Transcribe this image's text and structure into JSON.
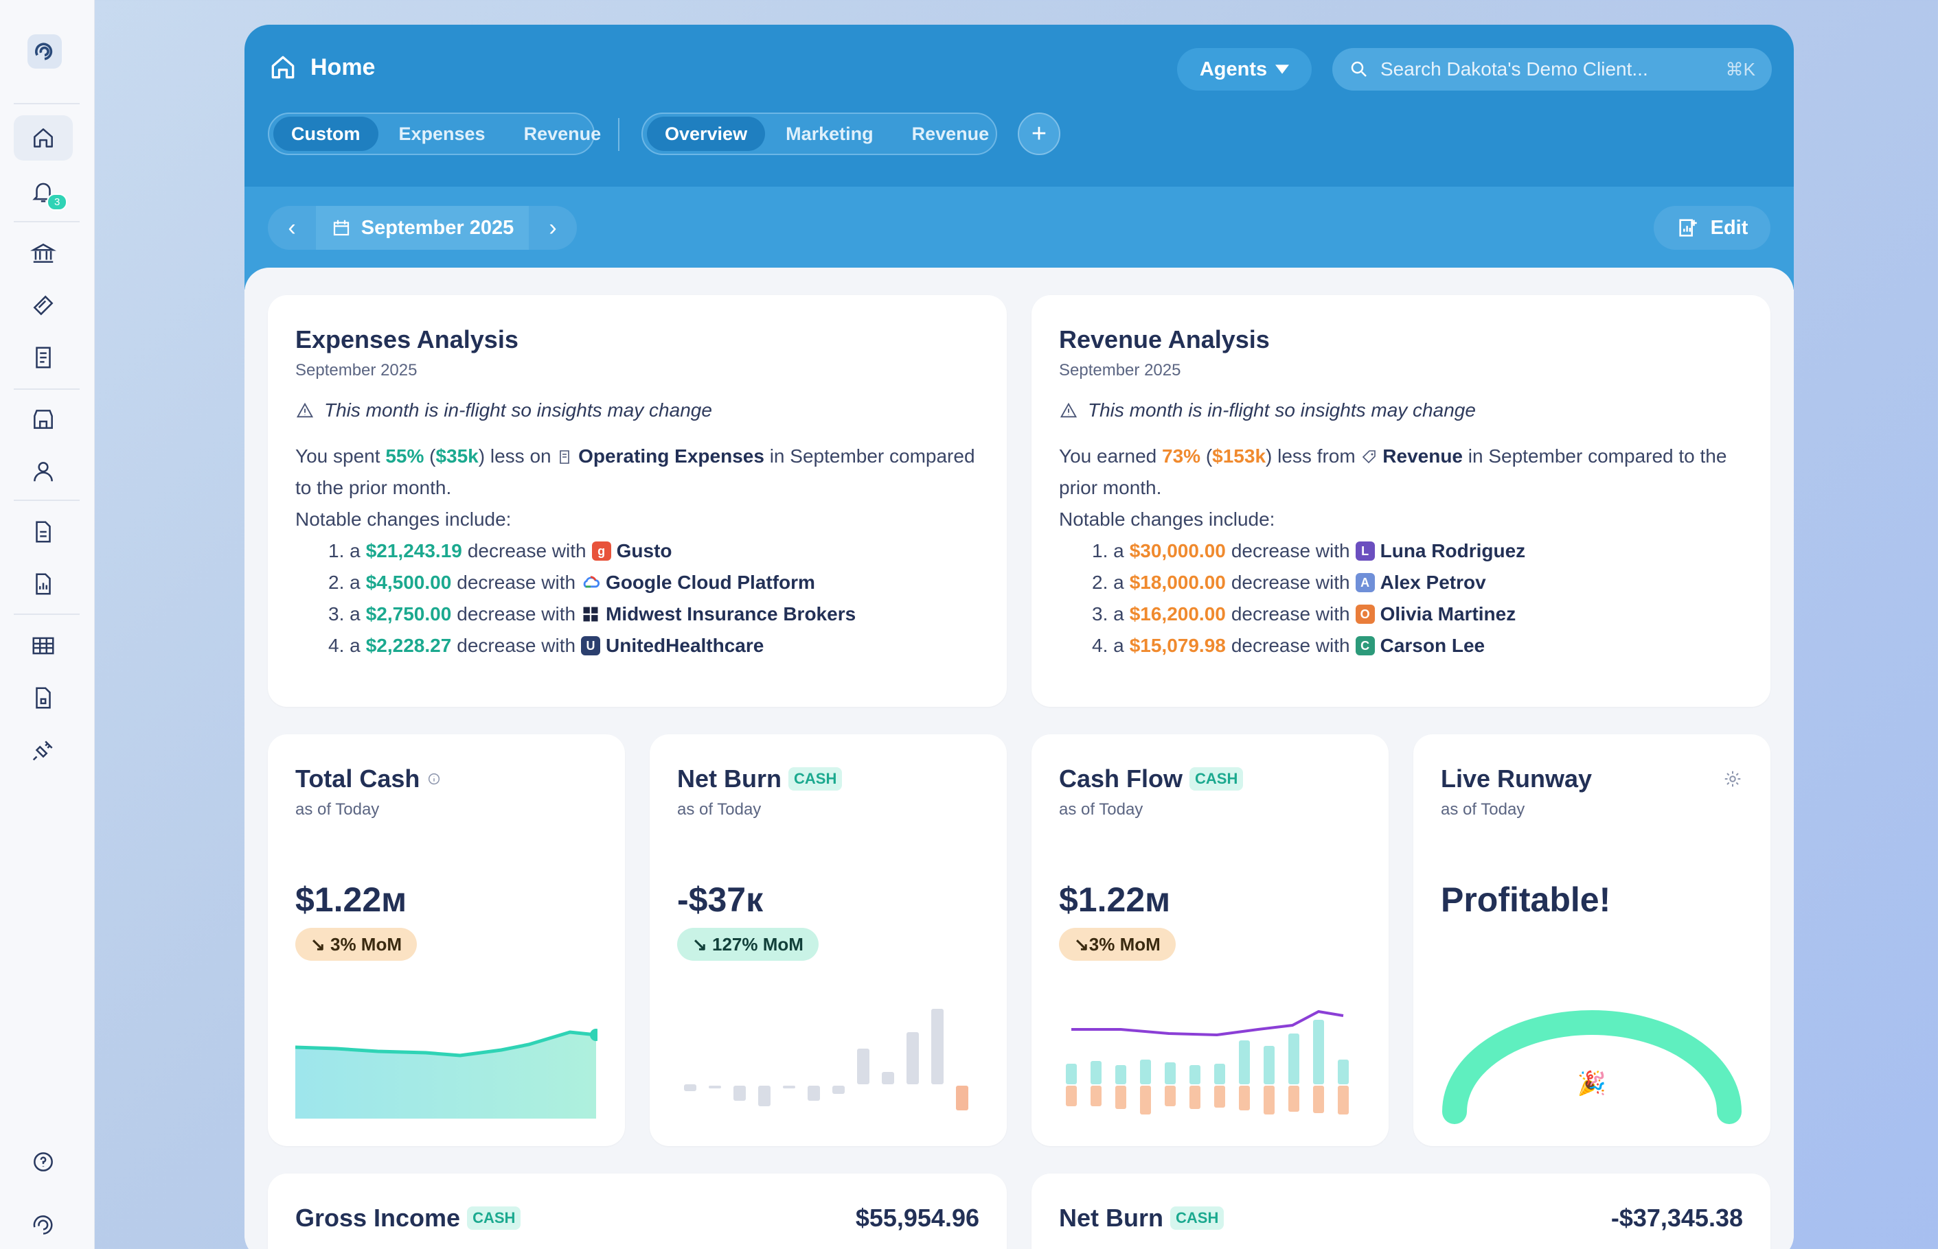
{
  "sidebar": {
    "notification_count": "3"
  },
  "header": {
    "title": "Home",
    "agents_label": "Agents",
    "search_placeholder": "Search Dakota's Demo Client...",
    "search_shortcut": "⌘K",
    "group1": [
      "Custom",
      "Expenses",
      "Revenue"
    ],
    "group2": [
      "Overview",
      "Marketing",
      "Revenue"
    ],
    "date_label": "September 2025",
    "edit_label": "Edit"
  },
  "expenses": {
    "title": "Expenses Analysis",
    "subtitle": "September 2025",
    "warning": "This month is in-flight so insights may change",
    "s1": "You spent ",
    "pct": "55%",
    "s2": " (",
    "amt": "$35k",
    "s3": ") less on ",
    "category": "Operating Expenses",
    "s4": " in September compared to the prior month.",
    "notable": "Notable changes include:",
    "items": [
      {
        "num": "1. a",
        "amount": "$21,243.19",
        "text": "decrease with",
        "name": "Gusto"
      },
      {
        "num": "2. a",
        "amount": "$4,500.00",
        "text": "decrease with",
        "name": "Google Cloud Platform"
      },
      {
        "num": "3. a",
        "amount": "$2,750.00",
        "text": "decrease with",
        "name": "Midwest Insurance Brokers"
      },
      {
        "num": "4. a",
        "amount": "$2,228.27",
        "text": "decrease with",
        "name": "UnitedHealthcare"
      }
    ]
  },
  "revenue": {
    "title": "Revenue Analysis",
    "subtitle": "September 2025",
    "warning": "This month is in-flight so insights may change",
    "s1": "You earned ",
    "pct": "73%",
    "s2": " (",
    "amt": "$153k",
    "s3": ") less from ",
    "category": "Revenue",
    "s4": " in September compared to the prior month.",
    "notable": "Notable changes include:",
    "items": [
      {
        "num": "1. a",
        "amount": "$30,000.00",
        "text": "decrease with",
        "name": "Luna Rodriguez",
        "initial": "L",
        "color": "#6b4fbf"
      },
      {
        "num": "2. a",
        "amount": "$18,000.00",
        "text": "decrease with",
        "name": "Alex Petrov",
        "initial": "A",
        "color": "#6f8fd8"
      },
      {
        "num": "3. a",
        "amount": "$16,200.00",
        "text": "decrease with",
        "name": "Olivia Martinez",
        "initial": "O",
        "color": "#e97d3a"
      },
      {
        "num": "4. a",
        "amount": "$15,079.98",
        "text": "decrease with",
        "name": "Carson Lee",
        "initial": "C",
        "color": "#2c9a7a"
      }
    ]
  },
  "metrics": [
    {
      "title": "Total Cash",
      "subtitle": "as of Today",
      "value": "$1.22м",
      "mom": "↘ 3% MoM"
    },
    {
      "title": "Net Burn",
      "tag": "CASH",
      "subtitle": "as of Today",
      "value": "-$37к",
      "mom": "↘ 127% MoM"
    },
    {
      "title": "Cash Flow",
      "tag": "CASH",
      "subtitle": "as of Today",
      "value": "$1.22м",
      "mom": "↘3% MoM"
    },
    {
      "title": "Live Runway",
      "subtitle": "as of Today",
      "value": "Profitable!"
    }
  ],
  "bottom": [
    {
      "title": "Gross Income",
      "tag": "CASH",
      "value": "$55,954.96"
    },
    {
      "title": "Net Burn",
      "tag": "CASH",
      "value": "-$37,345.38"
    }
  ],
  "colors": {
    "accent": "#2a8fd0",
    "teal": "#1ba98f",
    "orange": "#f08a2e"
  }
}
